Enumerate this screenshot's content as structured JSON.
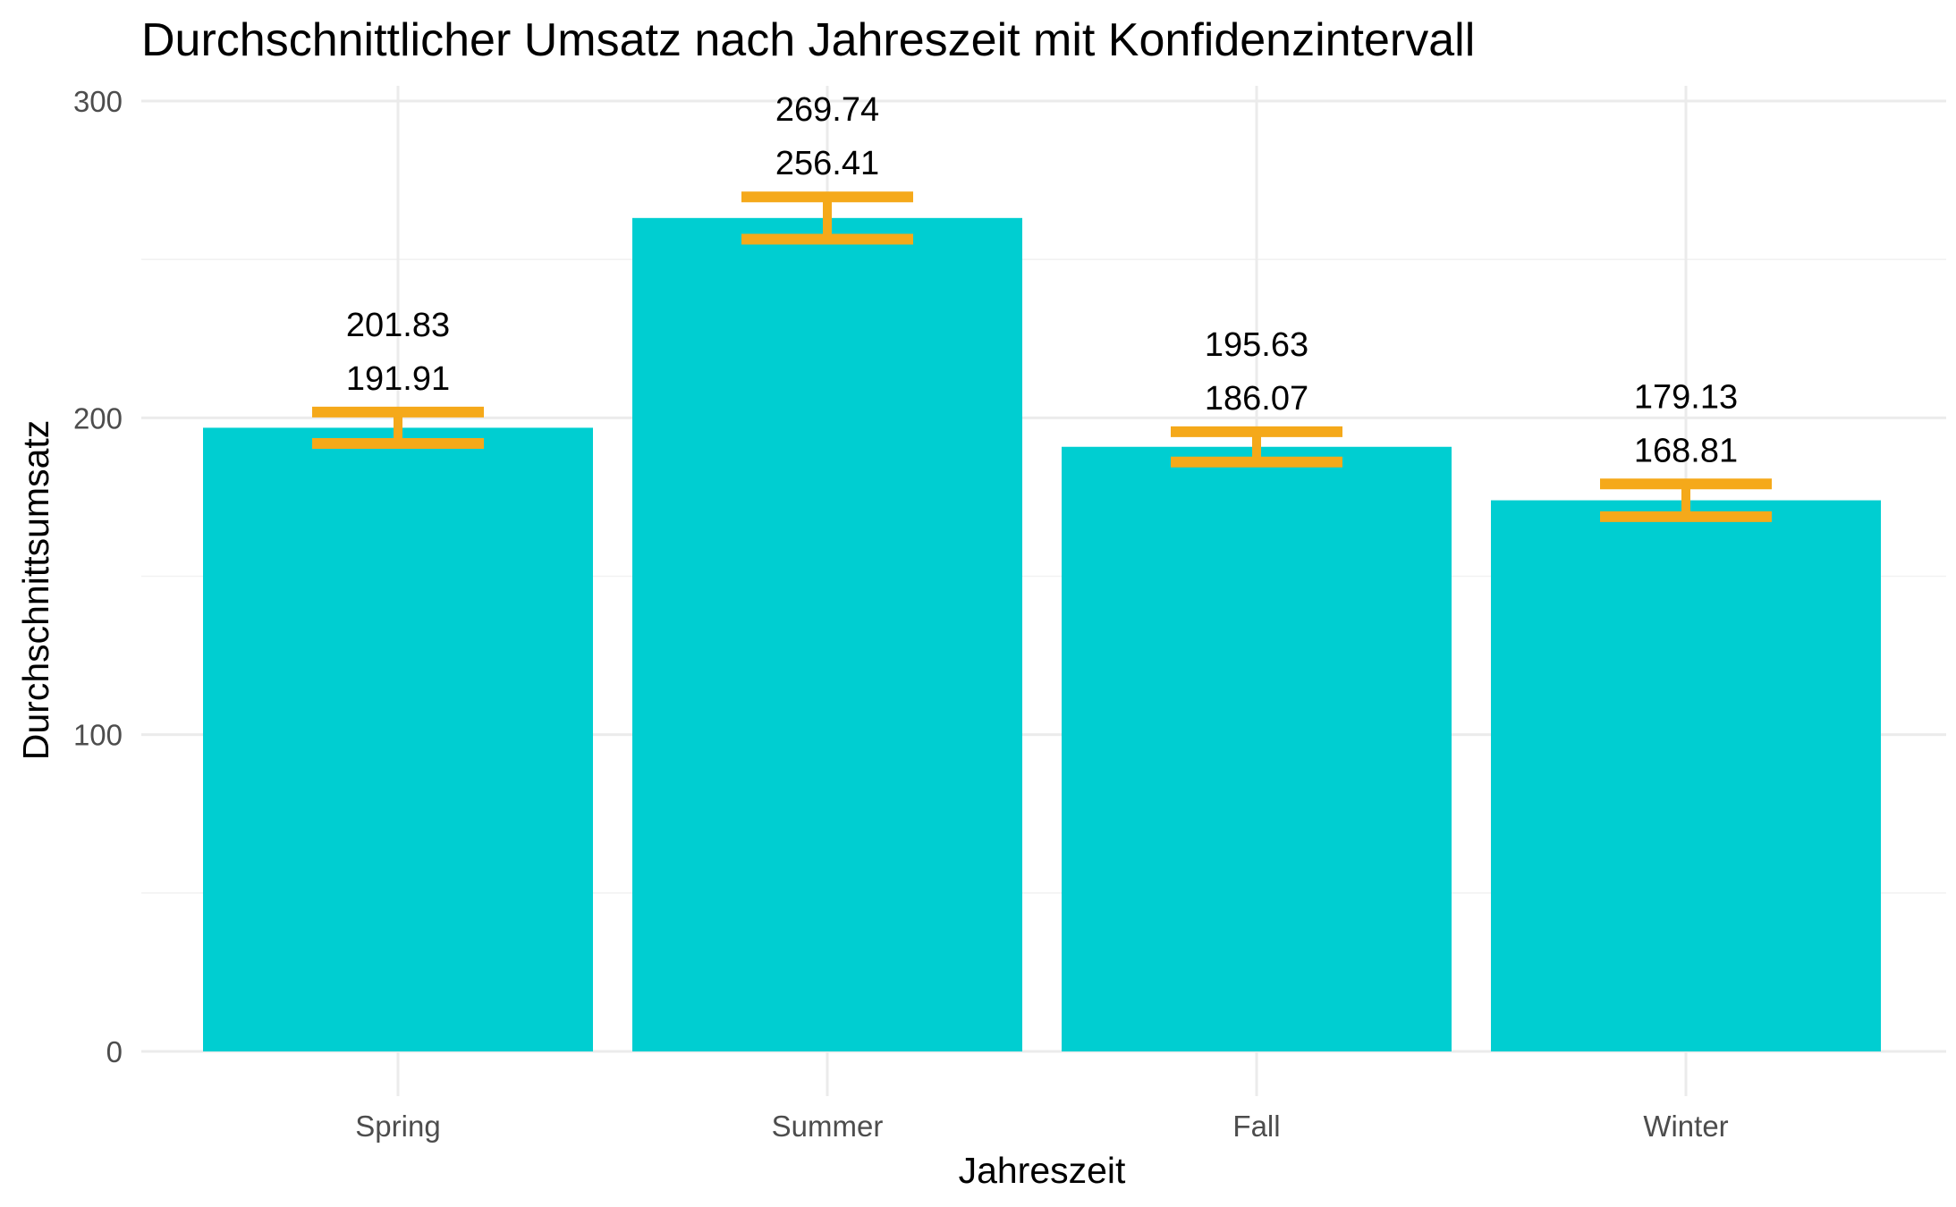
{
  "chart_data": {
    "type": "bar",
    "title": "Durchschnittlicher Umsatz nach Jahreszeit mit Konfidenzintervall",
    "xlabel": "Jahreszeit",
    "ylabel": "Durchschnittsumsatz",
    "categories": [
      "Spring",
      "Summer",
      "Fall",
      "Winter"
    ],
    "values": [
      196.87,
      263.08,
      190.85,
      173.97
    ],
    "ci_lower": [
      191.91,
      256.41,
      186.07,
      168.81
    ],
    "ci_upper": [
      201.83,
      269.74,
      195.63,
      179.13
    ],
    "ci_lower_labels": [
      "191.91",
      "256.41",
      "186.07",
      "168.81"
    ],
    "ci_upper_labels": [
      "201.83",
      "269.74",
      "195.63",
      "179.13"
    ],
    "ylim": [
      0,
      300
    ],
    "yticks": [
      0,
      100,
      200,
      300
    ],
    "ytick_labels": [
      "0",
      "100",
      "200",
      "300"
    ],
    "grid": true,
    "legend": "none",
    "colors": {
      "bar": "#00CED1",
      "errorbar": "#F5A91A"
    }
  }
}
